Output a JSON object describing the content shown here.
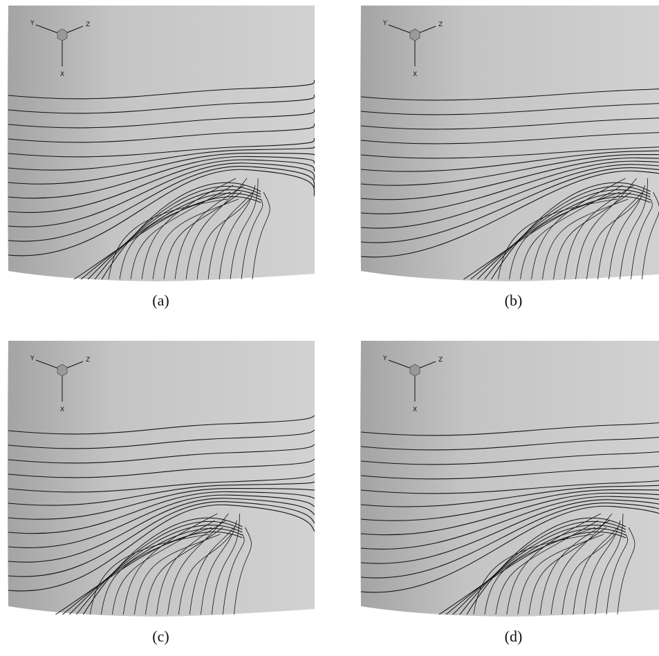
{
  "panels": [
    {
      "label": "(a)",
      "axes": [
        "Y",
        "Z",
        "X"
      ]
    },
    {
      "label": "(b)",
      "axes": [
        "Y",
        "Z",
        "X"
      ]
    },
    {
      "label": "(c)",
      "axes": [
        "Y",
        "Z",
        "X"
      ]
    },
    {
      "label": "(d)",
      "axes": [
        "Y",
        "Z",
        "X"
      ]
    }
  ]
}
